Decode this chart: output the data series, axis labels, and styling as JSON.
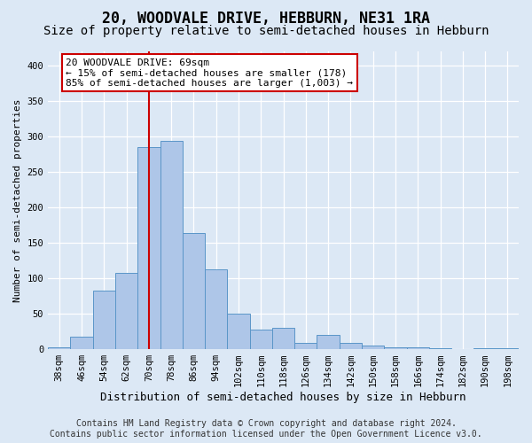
{
  "title": "20, WOODVALE DRIVE, HEBBURN, NE31 1RA",
  "subtitle": "Size of property relative to semi-detached houses in Hebburn",
  "xlabel": "Distribution of semi-detached houses by size in Hebburn",
  "ylabel": "Number of semi-detached properties",
  "footer_line1": "Contains HM Land Registry data © Crown copyright and database right 2024.",
  "footer_line2": "Contains public sector information licensed under the Open Government Licence v3.0.",
  "bin_labels": [
    "38sqm",
    "46sqm",
    "54sqm",
    "62sqm",
    "70sqm",
    "78sqm",
    "86sqm",
    "94sqm",
    "102sqm",
    "110sqm",
    "118sqm",
    "126sqm",
    "134sqm",
    "142sqm",
    "150sqm",
    "158sqm",
    "166sqm",
    "174sqm",
    "182sqm",
    "190sqm",
    "198sqm"
  ],
  "bar_values": [
    2,
    18,
    83,
    107,
    285,
    293,
    163,
    113,
    50,
    27,
    30,
    9,
    20,
    9,
    5,
    3,
    2,
    1,
    0,
    1,
    1
  ],
  "bar_color": "#aec6e8",
  "bar_edge_color": "#5a96c8",
  "property_bin_index": 4,
  "vline_color": "#cc0000",
  "annotation_text_line1": "20 WOODVALE DRIVE: 69sqm",
  "annotation_text_line2": "← 15% of semi-detached houses are smaller (178)",
  "annotation_text_line3": "85% of semi-detached houses are larger (1,003) →",
  "annotation_box_color": "#ffffff",
  "annotation_box_edge_color": "#cc0000",
  "ylim": [
    0,
    420
  ],
  "yticks": [
    0,
    50,
    100,
    150,
    200,
    250,
    300,
    350,
    400
  ],
  "background_color": "#dce8f5",
  "plot_bg_color": "#dce8f5",
  "grid_color": "#ffffff",
  "title_fontsize": 12,
  "subtitle_fontsize": 10,
  "xlabel_fontsize": 9,
  "ylabel_fontsize": 8,
  "tick_fontsize": 7.5,
  "annotation_fontsize": 8,
  "footer_fontsize": 7
}
